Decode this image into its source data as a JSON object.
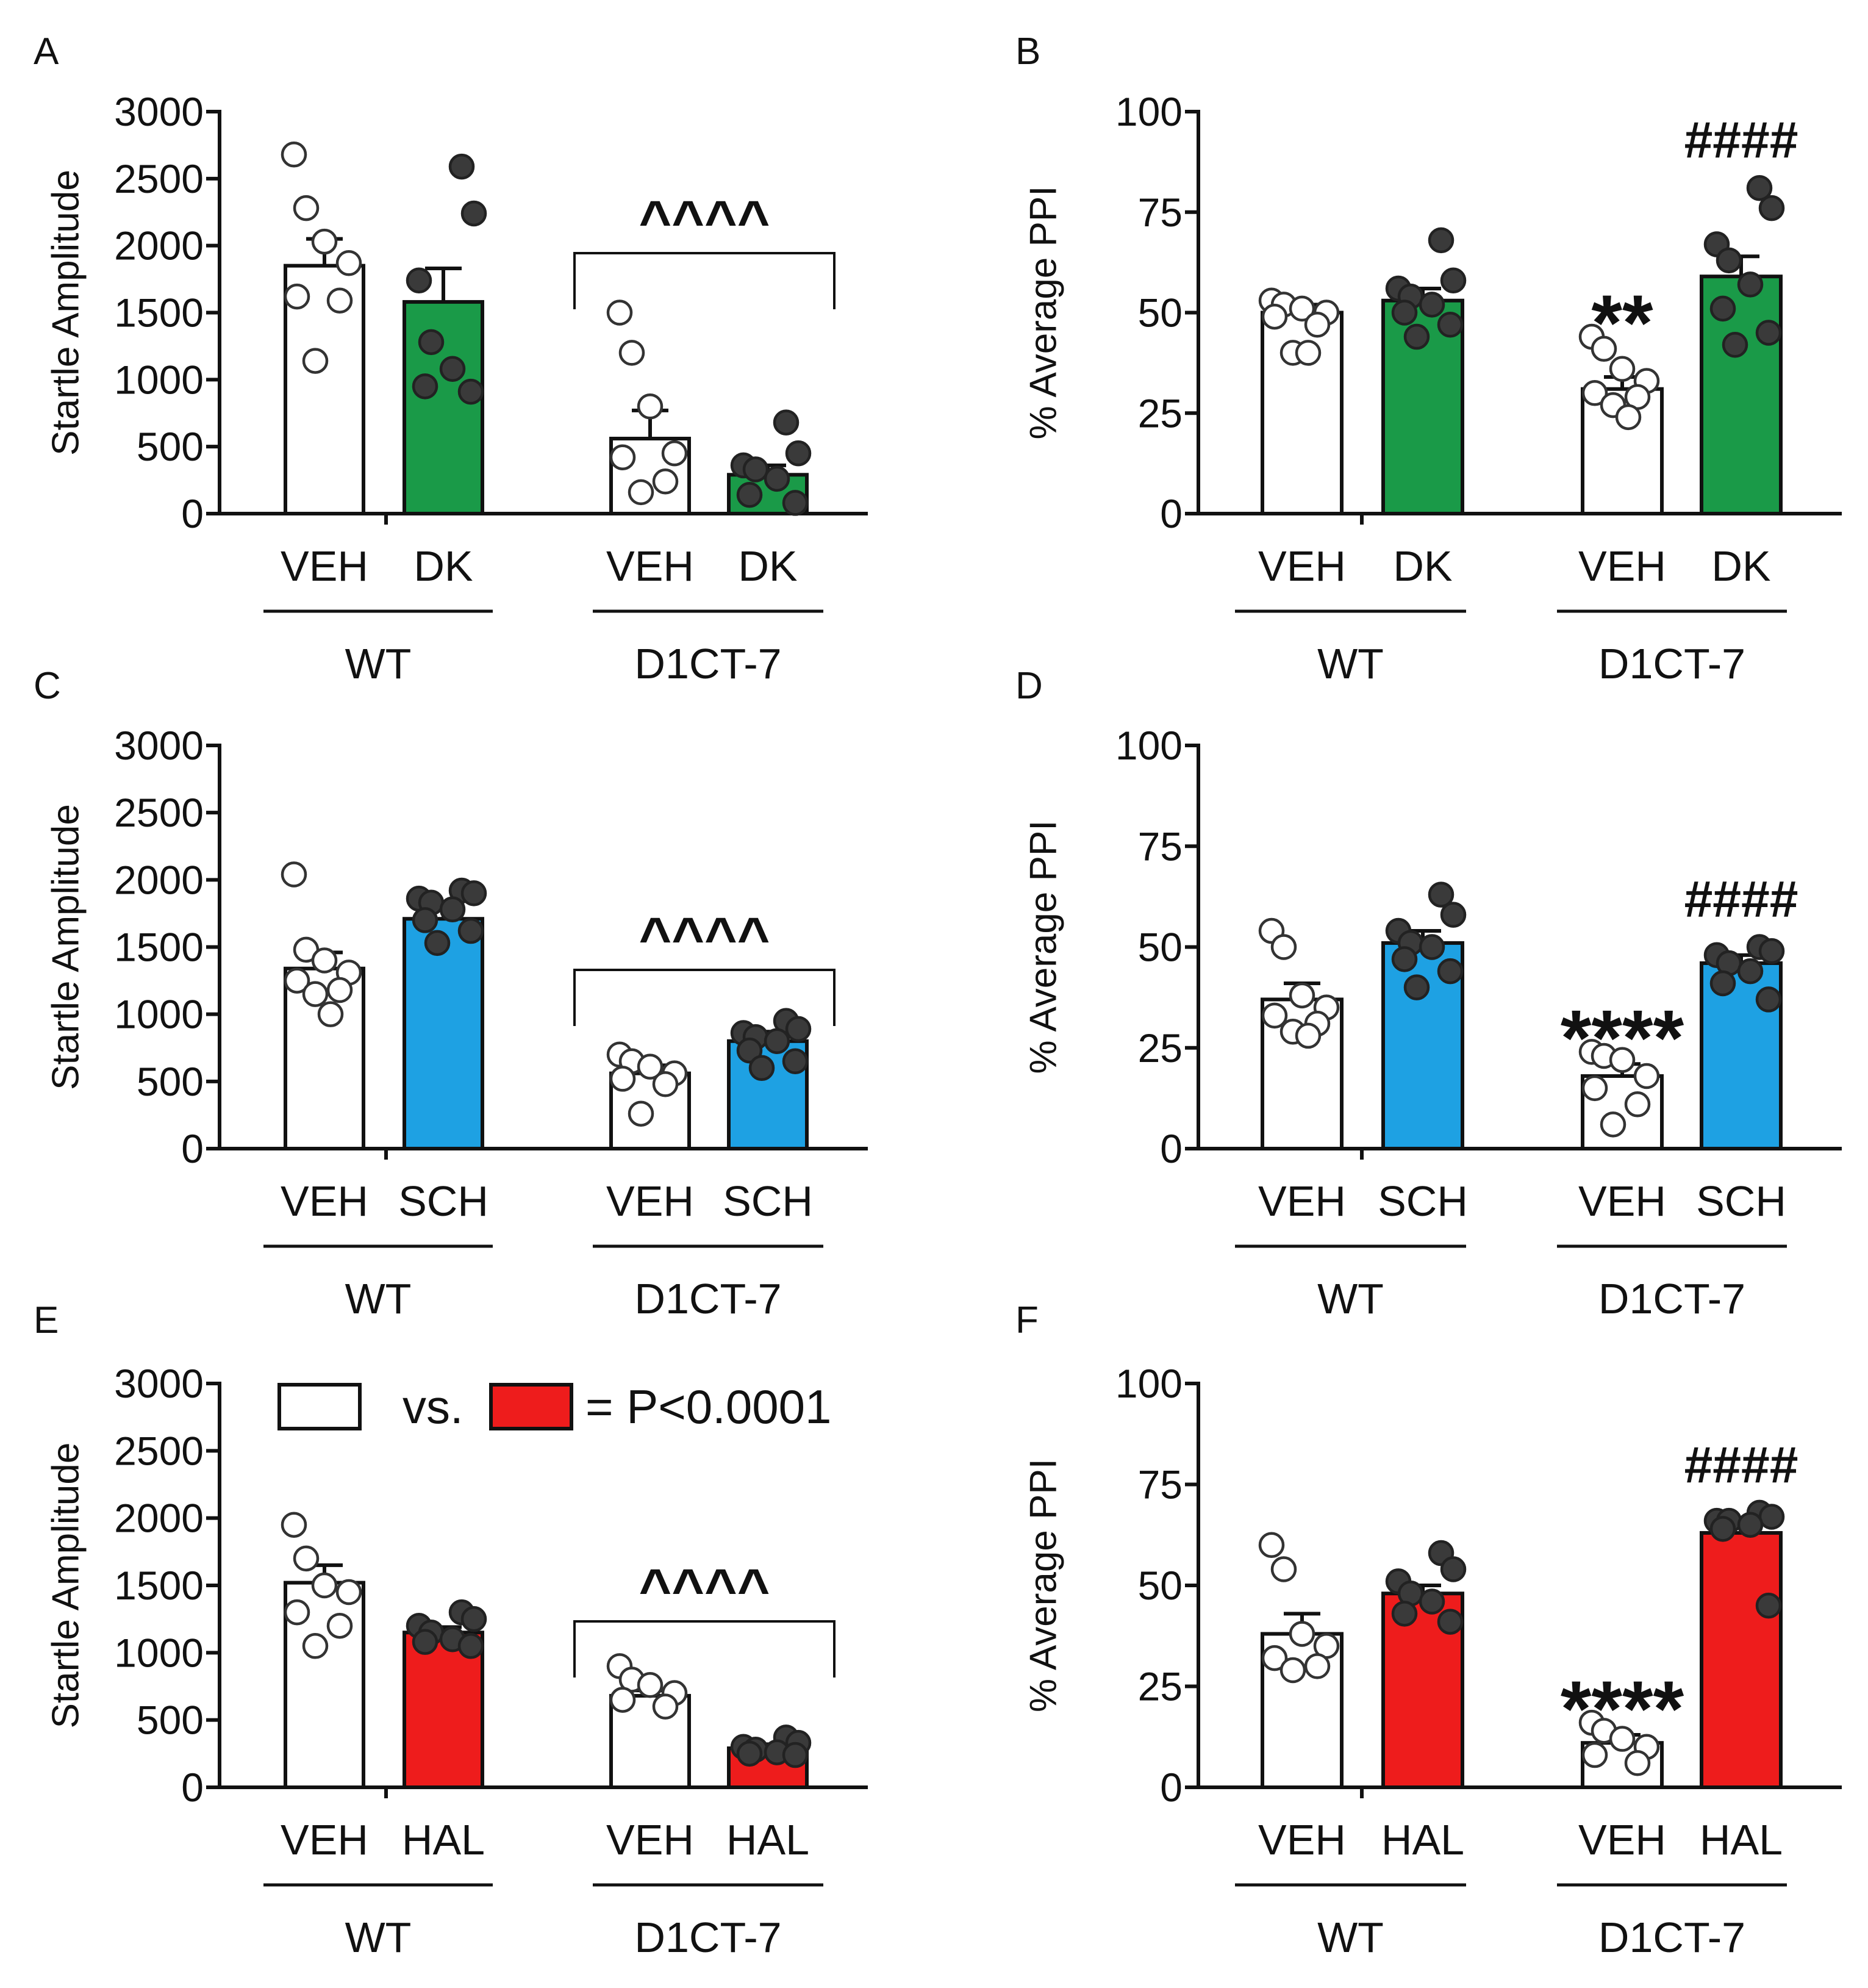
{
  "figure": {
    "legend": {
      "vs_text": "vs.",
      "result_text": "= P<0.0001",
      "colors": [
        "#ffffff",
        "#ee1c1c"
      ]
    }
  },
  "chart_data": [
    {
      "panel": "A",
      "type": "bar",
      "ylabel": "Startle Amplitude",
      "ylim": [
        0,
        3000
      ],
      "yticks": [
        "0",
        "500",
        "1000",
        "1500",
        "2000",
        "2500",
        "3000"
      ],
      "groups": [
        "WT",
        "D1CT-7"
      ],
      "categories": [
        "VEH",
        "DK",
        "VEH",
        "DK"
      ],
      "treatment_color": "#1a9a48",
      "values": [
        1850,
        1580,
        560,
        290
      ],
      "sem": [
        200,
        250,
        210,
        70
      ],
      "points": [
        [
          2680,
          2280,
          2030,
          1870,
          1620,
          1590,
          1140
        ],
        [
          2590,
          2240,
          1740,
          1280,
          1080,
          950,
          910
        ],
        [
          1500,
          1200,
          800,
          450,
          420,
          240,
          160
        ],
        [
          680,
          450,
          360,
          330,
          260,
          140,
          80
        ]
      ],
      "annotations": [
        {
          "text": "^^^^",
          "bracket": [
            2,
            3
          ]
        }
      ]
    },
    {
      "panel": "B",
      "type": "bar",
      "ylabel": "% Average PPI",
      "ylim": [
        0,
        100
      ],
      "yticks": [
        "0",
        "25",
        "50",
        "75",
        "100"
      ],
      "groups": [
        "WT",
        "D1CT-7"
      ],
      "categories": [
        "VEH",
        "DK",
        "VEH",
        "DK"
      ],
      "treatment_color": "#1a9a48",
      "values": [
        50,
        53,
        31,
        59
      ],
      "sem": [
        2,
        3,
        3,
        5
      ],
      "points": [
        [
          53,
          52,
          51,
          50,
          49,
          47,
          40,
          40
        ],
        [
          68,
          58,
          56,
          54,
          52,
          50,
          47,
          44
        ],
        [
          44,
          41,
          36,
          33,
          30,
          29,
          27,
          24
        ],
        [
          81,
          76,
          67,
          63,
          57,
          51,
          45,
          42
        ]
      ],
      "annotations": [
        {
          "text": "**",
          "bar": 2
        },
        {
          "text": "####",
          "bar": 3
        }
      ]
    },
    {
      "panel": "C",
      "type": "bar",
      "ylabel": "Startle Amplitude",
      "ylim": [
        0,
        3000
      ],
      "yticks": [
        "0",
        "500",
        "1000",
        "1500",
        "2000",
        "2500",
        "3000"
      ],
      "groups": [
        "WT",
        "D1CT-7"
      ],
      "categories": [
        "VEH",
        "SCH",
        "VEH",
        "SCH"
      ],
      "treatment_color": "#1ea1e3",
      "values": [
        1340,
        1710,
        560,
        800
      ],
      "sem": [
        120,
        70,
        60,
        70
      ],
      "points": [
        [
          2040,
          1480,
          1400,
          1310,
          1250,
          1180,
          1150,
          1000
        ],
        [
          1920,
          1900,
          1860,
          1830,
          1780,
          1700,
          1620,
          1530
        ],
        [
          700,
          650,
          610,
          560,
          520,
          480,
          260
        ],
        [
          950,
          890,
          860,
          830,
          800,
          730,
          650,
          600
        ]
      ],
      "annotations": [
        {
          "text": "^^^^",
          "bracket": [
            2,
            3
          ]
        }
      ]
    },
    {
      "panel": "D",
      "type": "bar",
      "ylabel": "% Average PPI",
      "ylim": [
        0,
        100
      ],
      "yticks": [
        "0",
        "25",
        "50",
        "75",
        "100"
      ],
      "groups": [
        "WT",
        "D1CT-7"
      ],
      "categories": [
        "VEH",
        "SCH",
        "VEH",
        "SCH"
      ],
      "treatment_color": "#1ea1e3",
      "values": [
        37,
        51,
        18,
        46
      ],
      "sem": [
        4,
        3,
        3,
        2
      ],
      "points": [
        [
          54,
          50,
          38,
          35,
          33,
          31,
          29,
          28
        ],
        [
          63,
          58,
          54,
          51,
          50,
          47,
          44,
          40
        ],
        [
          24,
          23,
          22,
          18,
          15,
          11,
          6
        ],
        [
          50,
          49,
          48,
          46,
          44,
          41,
          37
        ]
      ],
      "annotations": [
        {
          "text": "****",
          "bar": 2
        },
        {
          "text": "####",
          "bar": 3
        }
      ]
    },
    {
      "panel": "E",
      "type": "bar",
      "ylabel": "Startle Amplitude",
      "ylim": [
        0,
        3000
      ],
      "yticks": [
        "0",
        "500",
        "1000",
        "1500",
        "2000",
        "2500",
        "3000"
      ],
      "groups": [
        "WT",
        "D1CT-7"
      ],
      "categories": [
        "VEH",
        "HAL",
        "VEH",
        "HAL"
      ],
      "treatment_color": "#ee1c1c",
      "values": [
        1520,
        1150,
        680,
        290
      ],
      "sem": [
        130,
        40,
        40,
        30
      ],
      "points": [
        [
          1950,
          1700,
          1500,
          1450,
          1300,
          1200,
          1050
        ],
        [
          1300,
          1250,
          1200,
          1150,
          1100,
          1080,
          1050
        ],
        [
          900,
          800,
          760,
          700,
          650,
          600
        ],
        [
          370,
          330,
          300,
          280,
          260,
          250,
          240
        ]
      ],
      "annotations": [
        {
          "text": "^^^^",
          "bracket": [
            2,
            3
          ]
        }
      ]
    },
    {
      "panel": "F",
      "type": "bar",
      "ylabel": "% Average PPI",
      "ylim": [
        0,
        100
      ],
      "yticks": [
        "0",
        "25",
        "50",
        "75",
        "100"
      ],
      "groups": [
        "WT",
        "D1CT-7"
      ],
      "categories": [
        "VEH",
        "HAL",
        "VEH",
        "HAL"
      ],
      "treatment_color": "#ee1c1c",
      "values": [
        38,
        48,
        11,
        63
      ],
      "sem": [
        5,
        2,
        2,
        2
      ],
      "points": [
        [
          60,
          54,
          38,
          35,
          32,
          30,
          29
        ],
        [
          58,
          54,
          51,
          48,
          46,
          43,
          41
        ],
        [
          16,
          14,
          12,
          10,
          8,
          6
        ],
        [
          68,
          67,
          66,
          66,
          65,
          64,
          45
        ]
      ],
      "annotations": [
        {
          "text": "****",
          "bar": 2
        },
        {
          "text": "####",
          "bar": 3
        }
      ]
    }
  ]
}
